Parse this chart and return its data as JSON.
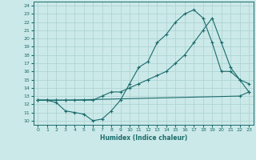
{
  "xlabel": "Humidex (Indice chaleur)",
  "bg_color": "#cce9e9",
  "grid_color": "#b0d4d4",
  "line_color": "#1a6b6b",
  "xlim": [
    -0.5,
    23.5
  ],
  "ylim": [
    9.5,
    24.5
  ],
  "xticks": [
    0,
    1,
    2,
    3,
    4,
    5,
    6,
    7,
    8,
    9,
    10,
    11,
    12,
    13,
    14,
    15,
    16,
    17,
    18,
    19,
    20,
    21,
    22,
    23
  ],
  "yticks": [
    10,
    11,
    12,
    13,
    14,
    15,
    16,
    17,
    18,
    19,
    20,
    21,
    22,
    23,
    24
  ],
  "line1_x": [
    0,
    1,
    2,
    3,
    22,
    23
  ],
  "line1_y": [
    12.5,
    12.5,
    12.5,
    12.5,
    13.0,
    13.5
  ],
  "line2_x": [
    0,
    1,
    2,
    3,
    4,
    5,
    6,
    7,
    8,
    9,
    10,
    11,
    12,
    13,
    14,
    15,
    16,
    17,
    18,
    19,
    20,
    21,
    22,
    23
  ],
  "line2_y": [
    12.5,
    12.5,
    12.2,
    11.2,
    11.0,
    10.8,
    10.0,
    10.2,
    11.2,
    12.5,
    14.5,
    16.5,
    17.2,
    19.5,
    20.5,
    22.0,
    23.0,
    23.5,
    22.5,
    19.5,
    16.0,
    16.0,
    15.0,
    14.5
  ],
  "line3_x": [
    0,
    1,
    2,
    3,
    4,
    5,
    6,
    7,
    8,
    9,
    10,
    11,
    12,
    13,
    14,
    15,
    16,
    17,
    18,
    19,
    20,
    21,
    22,
    23
  ],
  "line3_y": [
    12.5,
    12.5,
    12.5,
    12.5,
    12.5,
    12.5,
    12.5,
    13.0,
    13.5,
    13.5,
    14.0,
    14.5,
    15.0,
    15.5,
    16.0,
    17.0,
    18.0,
    19.5,
    21.0,
    22.5,
    19.5,
    16.5,
    15.0,
    13.5
  ]
}
